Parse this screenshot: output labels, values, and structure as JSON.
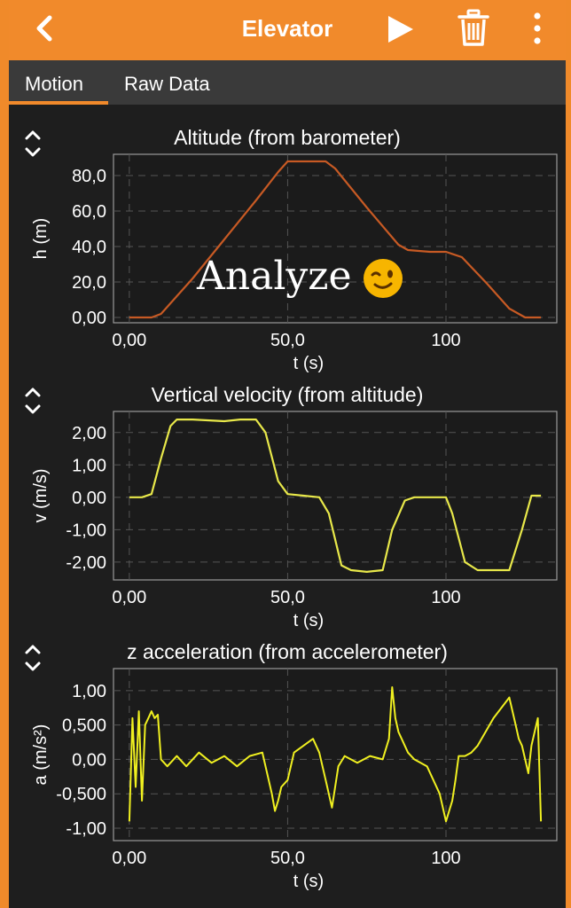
{
  "app": {
    "title": "Elevator",
    "tabs": [
      {
        "label": "Motion",
        "active": true
      },
      {
        "label": "Raw Data",
        "active": false
      }
    ],
    "accent_color": "#f18a2b",
    "icons": [
      "back-chevron-icon",
      "play-icon",
      "trash-icon",
      "more-vertical-icon",
      "expand-collapse-icon",
      "winking-face-icon"
    ]
  },
  "overlay": {
    "text": "Analyze"
  },
  "chart_data": [
    {
      "type": "line",
      "title": "Altitude (from barometer)",
      "xlabel": "t (s)",
      "ylabel": "h (m)",
      "xlim": [
        -5,
        135
      ],
      "ylim": [
        -3,
        92
      ],
      "xticks": [
        "0,00",
        "50,0",
        "100"
      ],
      "yticks": [
        "0,00",
        "20,0",
        "40,0",
        "60,0",
        "80,0"
      ],
      "ytick_values": [
        0,
        20,
        40,
        60,
        80
      ],
      "grid": true,
      "color": "#c75a24",
      "x": [
        0,
        7,
        10,
        20,
        30,
        40,
        47,
        50,
        55,
        62,
        65,
        75,
        85,
        88,
        95,
        100,
        105,
        113,
        120,
        125,
        130
      ],
      "y": [
        0,
        0,
        2,
        22,
        44,
        66,
        82,
        88,
        88,
        88,
        84,
        62,
        41,
        38,
        37,
        37,
        34,
        19,
        5,
        0,
        0
      ]
    },
    {
      "type": "line",
      "title": "Vertical velocity (from altitude)",
      "xlabel": "t (s)",
      "ylabel": "v (m/s)",
      "xlim": [
        -5,
        135
      ],
      "ylim": [
        -2.55,
        2.65
      ],
      "xticks": [
        "0,00",
        "50,0",
        "100"
      ],
      "yticks": [
        "-2,00",
        "-1,00",
        "0,00",
        "1,00",
        "2,00"
      ],
      "ytick_values": [
        -2,
        -1,
        0,
        1,
        2
      ],
      "grid": true,
      "color": "#e8e84a",
      "x": [
        0,
        4,
        7,
        10,
        13,
        15,
        20,
        30,
        35,
        40,
        43,
        47,
        50,
        55,
        60,
        63,
        67,
        70,
        75,
        80,
        83,
        87,
        90,
        95,
        100,
        102,
        106,
        110,
        115,
        120,
        124,
        127,
        130
      ],
      "y": [
        0,
        0,
        0.1,
        1.2,
        2.2,
        2.4,
        2.4,
        2.35,
        2.4,
        2.4,
        2.0,
        0.5,
        0.1,
        0.05,
        0,
        -0.5,
        -2.1,
        -2.25,
        -2.3,
        -2.25,
        -1.0,
        -0.1,
        0,
        0,
        0,
        -0.5,
        -2.0,
        -2.25,
        -2.25,
        -2.25,
        -1.0,
        0.05,
        0.05
      ]
    },
    {
      "type": "line",
      "title": "z acceleration (from accelerometer)",
      "xlabel": "t (s)",
      "ylabel": "a (m/s²)",
      "xlim": [
        -5,
        135
      ],
      "ylim": [
        -1.18,
        1.32
      ],
      "xticks": [
        "0,00",
        "50,0",
        "100"
      ],
      "yticks": [
        "-1,00",
        "-0,500",
        "0,00",
        "0,500",
        "1,00"
      ],
      "ytick_values": [
        -1,
        -0.5,
        0,
        0.5,
        1
      ],
      "grid": true,
      "color": "#f0f020",
      "x": [
        0,
        1,
        2,
        3,
        4,
        5,
        6,
        7,
        8,
        9,
        10,
        12,
        15,
        18,
        22,
        26,
        30,
        34,
        38,
        42,
        45,
        46,
        47,
        48,
        50,
        52,
        55,
        58,
        60,
        62,
        64,
        65,
        66,
        68,
        72,
        76,
        80,
        82,
        83,
        84,
        85,
        86,
        88,
        90,
        94,
        98,
        100,
        102,
        103,
        104,
        106,
        108,
        110,
        115,
        120,
        122,
        123,
        124,
        125,
        126,
        127,
        128,
        129,
        130
      ],
      "y": [
        -0.9,
        0.6,
        -0.4,
        0.7,
        -0.6,
        0.5,
        0.6,
        0.7,
        0.6,
        0.65,
        0,
        -0.1,
        0.05,
        -0.1,
        0.1,
        -0.05,
        0.05,
        -0.1,
        0.05,
        0.1,
        -0.5,
        -0.75,
        -0.6,
        -0.4,
        -0.3,
        0.1,
        0.2,
        0.3,
        0.1,
        -0.3,
        -0.7,
        -0.4,
        -0.1,
        0.05,
        -0.05,
        0.05,
        0.0,
        0.3,
        1.05,
        0.6,
        0.4,
        0.3,
        0.1,
        0.0,
        -0.1,
        -0.5,
        -0.9,
        -0.6,
        -0.3,
        0.05,
        0.05,
        0.1,
        0.2,
        0.6,
        0.9,
        0.5,
        0.3,
        0.2,
        0.0,
        -0.2,
        0.2,
        0.4,
        0.6,
        -0.9
      ]
    }
  ]
}
